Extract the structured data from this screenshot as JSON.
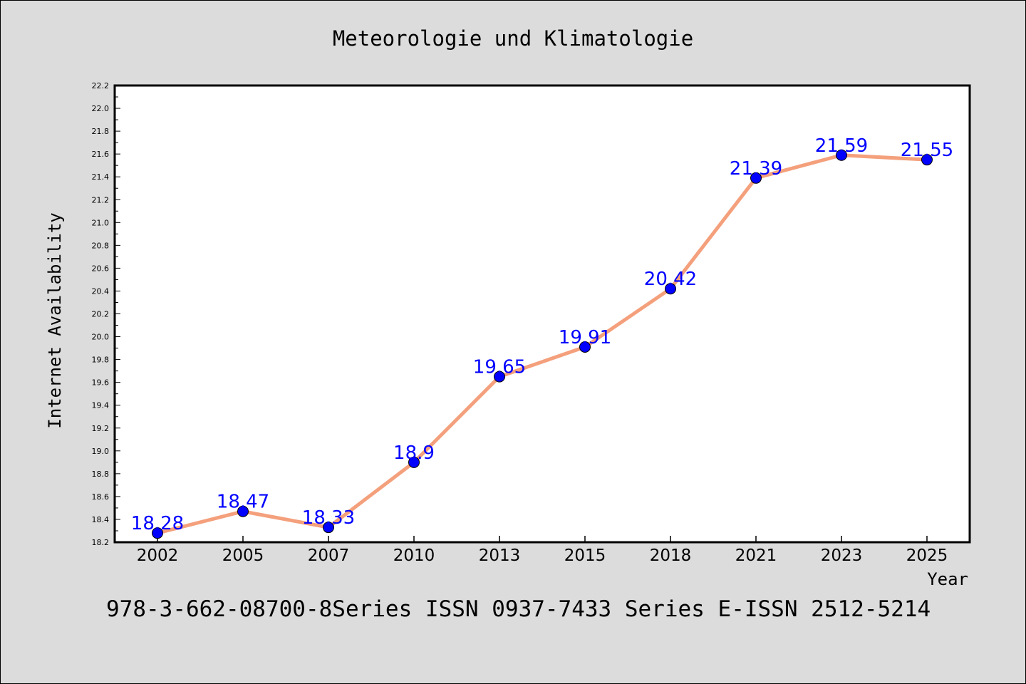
{
  "chart_data": {
    "type": "line",
    "title": "Meteorologie und Klimatologie",
    "xlabel": "Year",
    "ylabel": "Internet Availability",
    "categories": [
      "2002",
      "2005",
      "2007",
      "2010",
      "2013",
      "2015",
      "2018",
      "2021",
      "2023",
      "2025"
    ],
    "values": [
      18.28,
      18.47,
      18.33,
      18.9,
      19.65,
      19.91,
      20.42,
      21.39,
      21.59,
      21.55
    ],
    "data_labels": [
      "18.28",
      "18.47",
      "18.33",
      "18.9",
      "19.65",
      "19.91",
      "20.42",
      "21.39",
      "21.59",
      "21.55"
    ],
    "ylim": [
      18.2,
      22.2
    ],
    "yticks": [
      "18.2",
      "18.4",
      "18.6",
      "18.8",
      "19.0",
      "19.2",
      "19.4",
      "19.6",
      "19.8",
      "20.0",
      "20.2",
      "20.4",
      "20.6",
      "20.8",
      "21.0",
      "21.2",
      "21.4",
      "21.6",
      "21.8",
      "22.0",
      "22.2"
    ],
    "grid": false,
    "line_color": "#f4a07c",
    "marker_color": "#0000ff",
    "label_color": "#0000ff"
  },
  "footer": {
    "text": "978-3-662-08700-8Series ISSN 0937-7433 Series E-ISSN 2512-5214"
  },
  "colors": {
    "figure_background": "#dcdcdc",
    "plot_background": "#ffffff"
  }
}
